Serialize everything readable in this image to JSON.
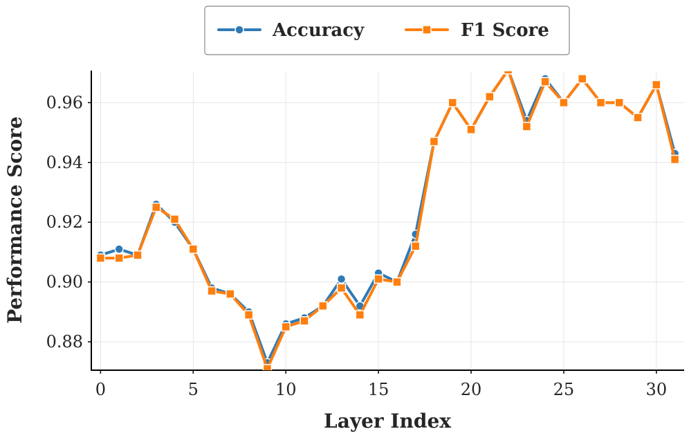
{
  "chart_data": {
    "type": "line",
    "xlabel": "Layer Index",
    "ylabel": "Performance Score",
    "x": [
      0,
      1,
      2,
      3,
      4,
      5,
      6,
      7,
      8,
      9,
      10,
      11,
      12,
      13,
      14,
      15,
      16,
      17,
      18,
      19,
      20,
      21,
      22,
      23,
      24,
      25,
      26,
      27,
      28,
      29,
      30,
      31
    ],
    "xlim": [
      -0.5,
      31.5
    ],
    "ylim": [
      0.8705,
      0.9705
    ],
    "xticks": [
      0,
      5,
      10,
      15,
      20,
      25,
      30
    ],
    "xtick_labels": [
      "0",
      "5",
      "10",
      "15",
      "20",
      "25",
      "30"
    ],
    "yticks": [
      0.88,
      0.9,
      0.92,
      0.94,
      0.96
    ],
    "ytick_labels": [
      "0.88",
      "0.90",
      "0.92",
      "0.94",
      "0.96"
    ],
    "grid": true,
    "legend_position": "top-center",
    "series": [
      {
        "name": "Accuracy",
        "color": "#2f7ab5",
        "marker": "circle",
        "values": [
          0.909,
          0.911,
          0.909,
          0.926,
          0.92,
          0.911,
          0.898,
          0.896,
          0.89,
          0.873,
          0.886,
          0.888,
          0.892,
          0.901,
          0.892,
          0.903,
          0.9,
          0.916,
          0.947,
          0.96,
          0.951,
          0.962,
          0.971,
          0.954,
          0.968,
          0.96,
          0.968,
          0.96,
          0.96,
          0.955,
          0.966,
          0.943
        ]
      },
      {
        "name": "F1 Score",
        "color": "#ff7f0e",
        "marker": "square",
        "values": [
          0.908,
          0.908,
          0.909,
          0.925,
          0.921,
          0.911,
          0.897,
          0.896,
          0.889,
          0.871,
          0.885,
          0.887,
          0.892,
          0.898,
          0.889,
          0.901,
          0.9,
          0.912,
          0.947,
          0.96,
          0.951,
          0.962,
          0.971,
          0.952,
          0.967,
          0.96,
          0.968,
          0.96,
          0.96,
          0.955,
          0.966,
          0.941
        ]
      }
    ]
  }
}
